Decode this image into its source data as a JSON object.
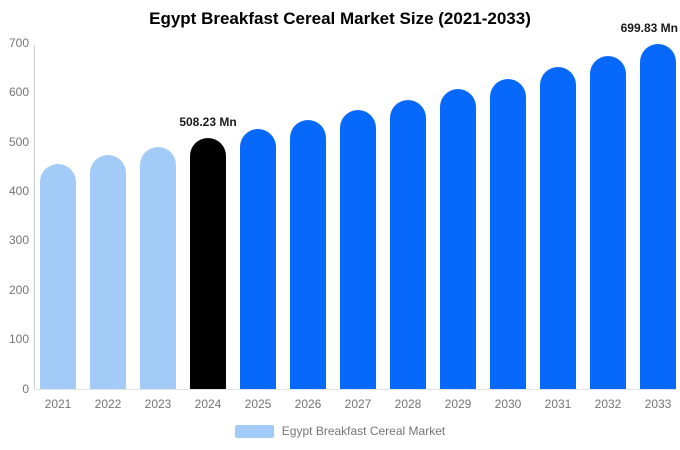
{
  "chart_data": {
    "type": "bar",
    "title": "Egypt Breakfast Cereal Market Size (2021-2033)",
    "categories": [
      "2021",
      "2022",
      "2023",
      "2024",
      "2025",
      "2026",
      "2027",
      "2028",
      "2029",
      "2030",
      "2031",
      "2032",
      "2033"
    ],
    "series": [
      {
        "name": "Egypt Breakfast Cereal Market",
        "values": [
          456.81,
          473.35,
          490.48,
          508.23,
          526.62,
          545.68,
          565.43,
          585.89,
          607.09,
          629.06,
          651.83,
          675.42,
          699.83
        ]
      }
    ],
    "unit": "Mn",
    "xlabel": "",
    "ylabel": "",
    "ylim": [
      0,
      700
    ],
    "yticks": [
      0,
      100,
      200,
      300,
      400,
      500,
      600,
      700
    ],
    "grid": false,
    "legend_position": "bottom",
    "legend_label": "Egypt Breakfast Cereal Market",
    "colors": [
      "#a2cbf8",
      "#a2cbf8",
      "#a2cbf8",
      "#000000",
      "#0669fb",
      "#0669fb",
      "#0669fb",
      "#0669fb",
      "#0669fb",
      "#0669fb",
      "#0669fb",
      "#0669fb",
      "#0669fb"
    ],
    "legend_swatch_color": "#a2cbf8",
    "annotations": [
      {
        "category": "2024",
        "text": "508.23 Mn"
      },
      {
        "category": "2033",
        "text": "699.83 Mn"
      }
    ]
  }
}
